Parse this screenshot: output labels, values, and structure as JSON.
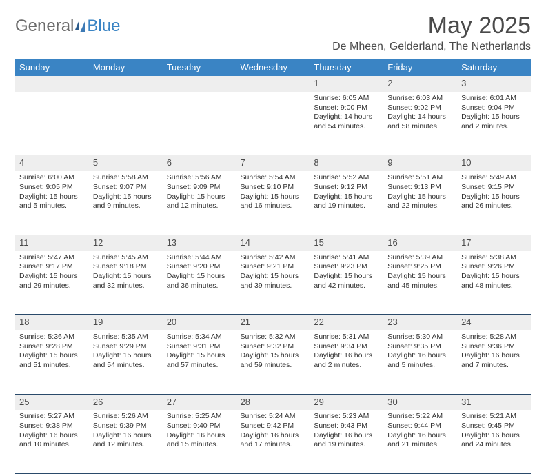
{
  "logo": {
    "text1": "General",
    "text2": "Blue"
  },
  "title": "May 2025",
  "location": "De Mheen, Gelderland, The Netherlands",
  "day_headers": [
    "Sunday",
    "Monday",
    "Tuesday",
    "Wednesday",
    "Thursday",
    "Friday",
    "Saturday"
  ],
  "colors": {
    "header_bg": "#3a84c4",
    "header_text": "#ffffff",
    "daynum_bg": "#eeeeee",
    "border": "#2a4a6a",
    "text": "#333333",
    "title_text": "#4a4a4a"
  },
  "weeks": [
    [
      null,
      null,
      null,
      null,
      {
        "n": "1",
        "sr": "6:05 AM",
        "ss": "9:00 PM",
        "dl": "14 hours and 54 minutes."
      },
      {
        "n": "2",
        "sr": "6:03 AM",
        "ss": "9:02 PM",
        "dl": "14 hours and 58 minutes."
      },
      {
        "n": "3",
        "sr": "6:01 AM",
        "ss": "9:04 PM",
        "dl": "15 hours and 2 minutes."
      }
    ],
    [
      {
        "n": "4",
        "sr": "6:00 AM",
        "ss": "9:05 PM",
        "dl": "15 hours and 5 minutes."
      },
      {
        "n": "5",
        "sr": "5:58 AM",
        "ss": "9:07 PM",
        "dl": "15 hours and 9 minutes."
      },
      {
        "n": "6",
        "sr": "5:56 AM",
        "ss": "9:09 PM",
        "dl": "15 hours and 12 minutes."
      },
      {
        "n": "7",
        "sr": "5:54 AM",
        "ss": "9:10 PM",
        "dl": "15 hours and 16 minutes."
      },
      {
        "n": "8",
        "sr": "5:52 AM",
        "ss": "9:12 PM",
        "dl": "15 hours and 19 minutes."
      },
      {
        "n": "9",
        "sr": "5:51 AM",
        "ss": "9:13 PM",
        "dl": "15 hours and 22 minutes."
      },
      {
        "n": "10",
        "sr": "5:49 AM",
        "ss": "9:15 PM",
        "dl": "15 hours and 26 minutes."
      }
    ],
    [
      {
        "n": "11",
        "sr": "5:47 AM",
        "ss": "9:17 PM",
        "dl": "15 hours and 29 minutes."
      },
      {
        "n": "12",
        "sr": "5:45 AM",
        "ss": "9:18 PM",
        "dl": "15 hours and 32 minutes."
      },
      {
        "n": "13",
        "sr": "5:44 AM",
        "ss": "9:20 PM",
        "dl": "15 hours and 36 minutes."
      },
      {
        "n": "14",
        "sr": "5:42 AM",
        "ss": "9:21 PM",
        "dl": "15 hours and 39 minutes."
      },
      {
        "n": "15",
        "sr": "5:41 AM",
        "ss": "9:23 PM",
        "dl": "15 hours and 42 minutes."
      },
      {
        "n": "16",
        "sr": "5:39 AM",
        "ss": "9:25 PM",
        "dl": "15 hours and 45 minutes."
      },
      {
        "n": "17",
        "sr": "5:38 AM",
        "ss": "9:26 PM",
        "dl": "15 hours and 48 minutes."
      }
    ],
    [
      {
        "n": "18",
        "sr": "5:36 AM",
        "ss": "9:28 PM",
        "dl": "15 hours and 51 minutes."
      },
      {
        "n": "19",
        "sr": "5:35 AM",
        "ss": "9:29 PM",
        "dl": "15 hours and 54 minutes."
      },
      {
        "n": "20",
        "sr": "5:34 AM",
        "ss": "9:31 PM",
        "dl": "15 hours and 57 minutes."
      },
      {
        "n": "21",
        "sr": "5:32 AM",
        "ss": "9:32 PM",
        "dl": "15 hours and 59 minutes."
      },
      {
        "n": "22",
        "sr": "5:31 AM",
        "ss": "9:34 PM",
        "dl": "16 hours and 2 minutes."
      },
      {
        "n": "23",
        "sr": "5:30 AM",
        "ss": "9:35 PM",
        "dl": "16 hours and 5 minutes."
      },
      {
        "n": "24",
        "sr": "5:28 AM",
        "ss": "9:36 PM",
        "dl": "16 hours and 7 minutes."
      }
    ],
    [
      {
        "n": "25",
        "sr": "5:27 AM",
        "ss": "9:38 PM",
        "dl": "16 hours and 10 minutes."
      },
      {
        "n": "26",
        "sr": "5:26 AM",
        "ss": "9:39 PM",
        "dl": "16 hours and 12 minutes."
      },
      {
        "n": "27",
        "sr": "5:25 AM",
        "ss": "9:40 PM",
        "dl": "16 hours and 15 minutes."
      },
      {
        "n": "28",
        "sr": "5:24 AM",
        "ss": "9:42 PM",
        "dl": "16 hours and 17 minutes."
      },
      {
        "n": "29",
        "sr": "5:23 AM",
        "ss": "9:43 PM",
        "dl": "16 hours and 19 minutes."
      },
      {
        "n": "30",
        "sr": "5:22 AM",
        "ss": "9:44 PM",
        "dl": "16 hours and 21 minutes."
      },
      {
        "n": "31",
        "sr": "5:21 AM",
        "ss": "9:45 PM",
        "dl": "16 hours and 24 minutes."
      }
    ]
  ],
  "labels": {
    "sunrise": "Sunrise: ",
    "sunset": "Sunset: ",
    "daylight": "Daylight: "
  }
}
